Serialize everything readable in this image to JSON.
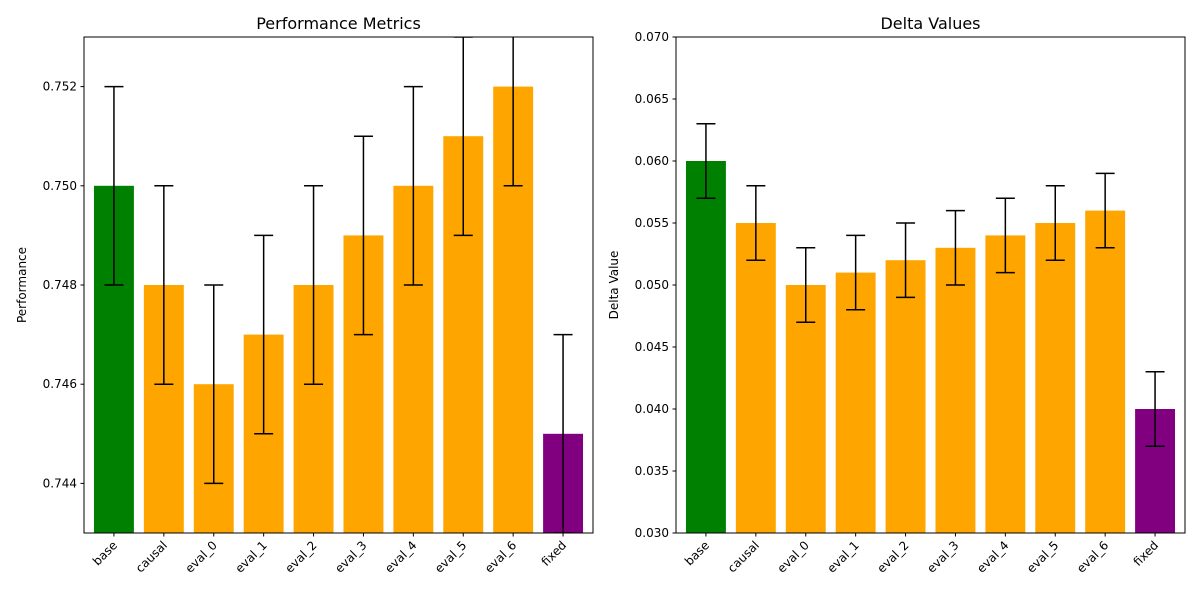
{
  "chart_data": [
    {
      "type": "bar",
      "title": "Performance Metrics",
      "xlabel": "",
      "ylabel": "Performance",
      "categories": [
        "base",
        "causal",
        "eval_0",
        "eval_1",
        "eval_2",
        "eval_3",
        "eval_4",
        "eval_5",
        "eval_6",
        "fixed"
      ],
      "values": [
        0.75,
        0.748,
        0.746,
        0.747,
        0.748,
        0.749,
        0.75,
        0.751,
        0.752,
        0.745
      ],
      "errors": [
        0.002,
        0.002,
        0.002,
        0.002,
        0.002,
        0.002,
        0.002,
        0.002,
        0.002,
        0.002
      ],
      "colors": [
        "#008000",
        "#FFA500",
        "#FFA500",
        "#FFA500",
        "#FFA500",
        "#FFA500",
        "#FFA500",
        "#FFA500",
        "#FFA500",
        "#800080"
      ],
      "ylim": [
        0.743,
        0.753
      ],
      "yticks": [
        0.744,
        0.746,
        0.748,
        0.75,
        0.752
      ],
      "ytick_labels": [
        "0.744",
        "0.746",
        "0.748",
        "0.750",
        "0.752"
      ],
      "grid": false
    },
    {
      "type": "bar",
      "title": "Delta Values",
      "xlabel": "",
      "ylabel": "Delta Value",
      "categories": [
        "base",
        "causal",
        "eval_0",
        "eval_1",
        "eval_2",
        "eval_3",
        "eval_4",
        "eval_5",
        "eval_6",
        "fixed"
      ],
      "values": [
        0.06,
        0.055,
        0.05,
        0.051,
        0.052,
        0.053,
        0.054,
        0.055,
        0.056,
        0.04
      ],
      "errors": [
        0.003,
        0.003,
        0.003,
        0.003,
        0.003,
        0.003,
        0.003,
        0.003,
        0.003,
        0.003
      ],
      "colors": [
        "#008000",
        "#FFA500",
        "#FFA500",
        "#FFA500",
        "#FFA500",
        "#FFA500",
        "#FFA500",
        "#FFA500",
        "#FFA500",
        "#800080"
      ],
      "ylim": [
        0.03,
        0.07
      ],
      "yticks": [
        0.03,
        0.035,
        0.04,
        0.045,
        0.05,
        0.055,
        0.06,
        0.065,
        0.07
      ],
      "ytick_labels": [
        "0.030",
        "0.035",
        "0.040",
        "0.045",
        "0.050",
        "0.055",
        "0.060",
        "0.065",
        "0.070"
      ],
      "grid": false
    }
  ]
}
